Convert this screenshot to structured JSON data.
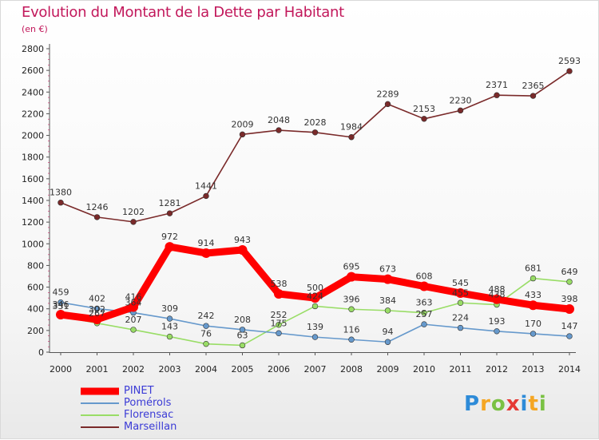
{
  "chart_data": {
    "type": "line",
    "title": "Evolution du Montant de la Dette par Habitant",
    "subtitle": "(en €)",
    "categories": [
      "2000",
      "2001",
      "2002",
      "2003",
      "2004",
      "2005",
      "2006",
      "2007",
      "2008",
      "2009",
      "2010",
      "2011",
      "2012",
      "2013",
      "2014"
    ],
    "ylim": [
      0,
      2800
    ],
    "yticks": [
      0,
      200,
      400,
      600,
      800,
      1000,
      1200,
      1400,
      1600,
      1800,
      2000,
      2200,
      2400,
      2600,
      2800
    ],
    "grid": false,
    "legend_position": "bottom-left",
    "series": [
      {
        "name": "PINET",
        "color": "#ff0000",
        "values": [
          346,
          302,
          416,
          972,
          914,
          943,
          538,
          500,
          695,
          673,
          608,
          545,
          488,
          433,
          398
        ]
      },
      {
        "name": "Pomérols",
        "color": "#6699cc",
        "values": [
          459,
          402,
          364,
          309,
          242,
          208,
          175,
          139,
          116,
          94,
          257,
          224,
          193,
          170,
          147
        ]
      },
      {
        "name": "Florensac",
        "color": "#99dd66",
        "values": [
          331,
          267,
          207,
          143,
          76,
          63,
          252,
          424,
          396,
          384,
          363,
          455,
          438,
          681,
          649
        ]
      },
      {
        "name": "Marseillan",
        "color": "#7a2a2a",
        "values": [
          1380,
          1246,
          1202,
          1281,
          1441,
          2009,
          2048,
          2028,
          1984,
          2289,
          2153,
          2230,
          2371,
          2365,
          2593
        ]
      }
    ]
  },
  "logo": {
    "text": "Proxiti",
    "letters": [
      "P",
      "r",
      "o",
      "x",
      "i",
      "t",
      "i"
    ]
  }
}
